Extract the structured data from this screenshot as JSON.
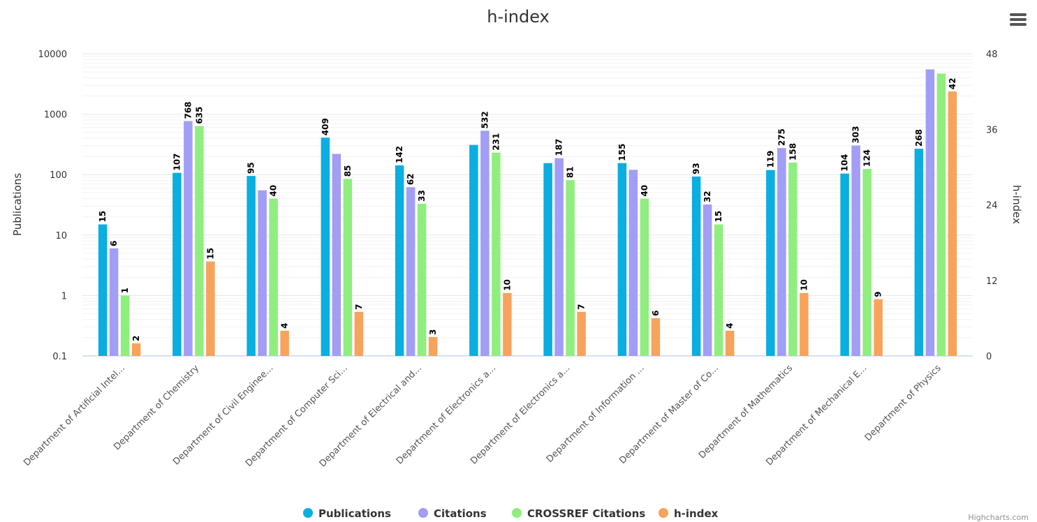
{
  "menu_icon": "hamburger-menu-icon",
  "credits": "Highcharts.com",
  "chart_data": {
    "type": "bar",
    "title": "h-index",
    "ylabel_left": "Publications",
    "ylabel_right": "h-index",
    "left_axis": {
      "scale": "log",
      "ylim": [
        0.1,
        10000
      ],
      "ticks": [
        "0.1",
        "1",
        "10",
        "100",
        "1000",
        "10000"
      ]
    },
    "right_axis": {
      "scale": "linear",
      "ylim": [
        0,
        48
      ],
      "ticks": [
        "0",
        "12",
        "24",
        "36",
        "48"
      ]
    },
    "grid": true,
    "legend_position": "bottom-center",
    "categories": [
      "Department of Artificial Intel...",
      "Department of Chemistry",
      "Department of Civil Enginee...",
      "Department of Computer Sci...",
      "Department of Electrical and...",
      "Department of Electronics a...",
      "Department of Electronics a...",
      "Department of Information ...",
      "Department of Master of Co...",
      "Department of Mathematics",
      "Department of Mechanical E...",
      "Department of Physics"
    ],
    "series": [
      {
        "name": "Publications",
        "axis": "left",
        "color": "#0aaee0",
        "values": [
          15,
          107,
          95,
          409,
          142,
          310,
          155,
          155,
          93,
          119,
          104,
          268
        ],
        "labels": [
          "15",
          "107",
          "95",
          "409",
          "142",
          "",
          "",
          "155",
          "93",
          "119",
          "104",
          "268"
        ]
      },
      {
        "name": "Citations",
        "axis": "left",
        "color": "#a29df5",
        "values": [
          6,
          768,
          55,
          220,
          62,
          532,
          187,
          120,
          32,
          275,
          303,
          5500
        ],
        "labels": [
          "6",
          "768",
          "",
          "",
          "62",
          "532",
          "187",
          "",
          "32",
          "275",
          "303",
          ""
        ]
      },
      {
        "name": "CROSSREF Citations",
        "axis": "left",
        "color": "#90ee7e",
        "values": [
          1,
          635,
          40,
          85,
          33,
          231,
          81,
          40,
          15,
          158,
          124,
          4700
        ],
        "labels": [
          "1",
          "635",
          "40",
          "85",
          "33",
          "231",
          "81",
          "40",
          "15",
          "158",
          "124",
          ""
        ]
      },
      {
        "name": "h-index",
        "axis": "right",
        "color": "#f7a35c",
        "values": [
          2,
          15,
          4,
          7,
          3,
          10,
          7,
          6,
          4,
          10,
          9,
          42
        ],
        "labels": [
          "2",
          "15",
          "4",
          "7",
          "3",
          "10",
          "7",
          "6",
          "4",
          "10",
          "9",
          "42"
        ]
      }
    ]
  }
}
